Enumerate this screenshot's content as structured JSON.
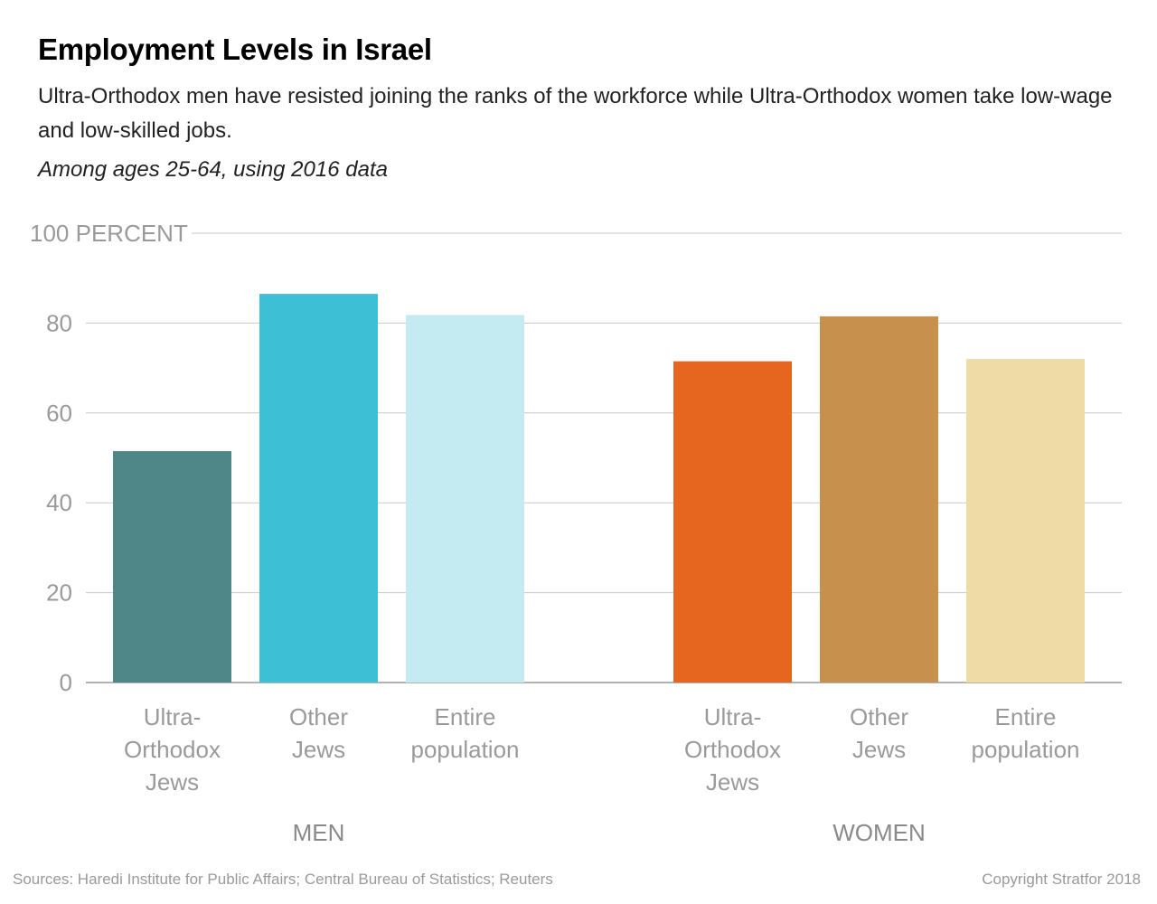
{
  "header": {
    "title": "Employment Levels in Israel",
    "subtitle": "Ultra-Orthodox men have resisted joining the ranks of the workforce while Ultra-Orthodox women take low-wage and low-skilled jobs.",
    "note": "Among ages 25-64, using 2016 data"
  },
  "footer": {
    "sources": "Sources: Haredi Institute for Public Affairs; Central Bureau of Statistics; Reuters",
    "copyright": "Copyright Stratfor 2018"
  },
  "chart_data": {
    "type": "bar",
    "ylim": [
      0,
      100
    ],
    "yticks": [
      {
        "value": 0,
        "label": "0"
      },
      {
        "value": 20,
        "label": "20"
      },
      {
        "value": 40,
        "label": "40"
      },
      {
        "value": 60,
        "label": "60"
      },
      {
        "value": 80,
        "label": "80"
      },
      {
        "value": 100,
        "label": "100 PERCENT"
      }
    ],
    "grid": true,
    "groups": [
      {
        "label": "MEN",
        "bars": [
          {
            "category": [
              "Ultra-",
              "Orthodox",
              "Jews"
            ],
            "value": 51.5,
            "color": "#4f8789"
          },
          {
            "category": [
              "Other",
              "Jews"
            ],
            "value": 86.5,
            "color": "#3dbfd6"
          },
          {
            "category": [
              "Entire",
              "population"
            ],
            "value": 81.8,
            "color": "#c4ebf1"
          }
        ]
      },
      {
        "label": "WOMEN",
        "bars": [
          {
            "category": [
              "Ultra-",
              "Orthodox",
              "Jews"
            ],
            "value": 71.5,
            "color": "#e6661f"
          },
          {
            "category": [
              "Other",
              "Jews"
            ],
            "value": 81.5,
            "color": "#c7914d"
          },
          {
            "category": [
              "Entire",
              "population"
            ],
            "value": 72.0,
            "color": "#efdba6"
          }
        ]
      }
    ]
  }
}
